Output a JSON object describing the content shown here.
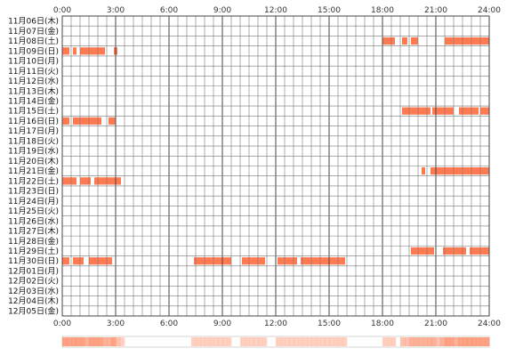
{
  "chart_data": {
    "type": "heatmap",
    "title": "",
    "x_ticks": [
      "0:00",
      "3:00",
      "6:00",
      "9:00",
      "12:00",
      "15:00",
      "18:00",
      "21:00",
      "24:00"
    ],
    "x_range_hours": [
      0,
      24
    ],
    "grid": true,
    "colors": {
      "bar": "#ff7a50",
      "grid": "#777777",
      "frame": "#444444",
      "summary_bg": "#ffffff"
    },
    "rows": [
      {
        "label": "11月06日(木)",
        "segments": []
      },
      {
        "label": "11月07日(金)",
        "segments": []
      },
      {
        "label": "11月08日(土)",
        "segments": [
          [
            18.0,
            18.7
          ],
          [
            19.1,
            19.4
          ],
          [
            19.6,
            20.0
          ],
          [
            21.5,
            24.0
          ]
        ]
      },
      {
        "label": "11月09日(日)",
        "segments": [
          [
            0.0,
            0.4
          ],
          [
            0.6,
            0.8
          ],
          [
            1.0,
            2.4
          ],
          [
            2.9,
            3.1
          ]
        ]
      },
      {
        "label": "11月10日(月)",
        "segments": []
      },
      {
        "label": "11月11日(火)",
        "segments": []
      },
      {
        "label": "11月12日(水)",
        "segments": []
      },
      {
        "label": "11月13日(木)",
        "segments": []
      },
      {
        "label": "11月14日(金)",
        "segments": []
      },
      {
        "label": "11月15日(土)",
        "segments": [
          [
            19.1,
            20.7
          ],
          [
            20.8,
            22.0
          ],
          [
            22.3,
            23.4
          ],
          [
            23.5,
            24.0
          ]
        ]
      },
      {
        "label": "11月16日(日)",
        "segments": [
          [
            0.0,
            0.4
          ],
          [
            0.6,
            2.2
          ],
          [
            2.6,
            3.0
          ]
        ]
      },
      {
        "label": "11月17日(月)",
        "segments": []
      },
      {
        "label": "11月18日(火)",
        "segments": []
      },
      {
        "label": "11月19日(水)",
        "segments": []
      },
      {
        "label": "11月20日(木)",
        "segments": []
      },
      {
        "label": "11月21日(金)",
        "segments": [
          [
            20.2,
            20.4
          ],
          [
            20.7,
            24.0
          ]
        ]
      },
      {
        "label": "11月22日(土)",
        "segments": [
          [
            0.0,
            0.8
          ],
          [
            1.0,
            1.6
          ],
          [
            1.8,
            3.3
          ]
        ]
      },
      {
        "label": "11月23日(日)",
        "segments": []
      },
      {
        "label": "11月24日(月)",
        "segments": []
      },
      {
        "label": "11月25日(火)",
        "segments": []
      },
      {
        "label": "11月26日(水)",
        "segments": []
      },
      {
        "label": "11月27日(木)",
        "segments": []
      },
      {
        "label": "11月28日(金)",
        "segments": []
      },
      {
        "label": "11月29日(土)",
        "segments": [
          [
            19.6,
            20.9
          ],
          [
            21.4,
            22.7
          ],
          [
            22.9,
            24.0
          ]
        ]
      },
      {
        "label": "11月30日(日)",
        "segments": [
          [
            0.0,
            0.4
          ],
          [
            0.6,
            1.2
          ],
          [
            1.5,
            2.8
          ],
          [
            7.4,
            9.5
          ],
          [
            10.1,
            11.4
          ],
          [
            12.1,
            13.2
          ],
          [
            13.4,
            15.9
          ]
        ]
      },
      {
        "label": "12月01日(月)",
        "segments": []
      },
      {
        "label": "12月02日(火)",
        "segments": []
      },
      {
        "label": "12月03日(水)",
        "segments": []
      },
      {
        "label": "12月04日(木)",
        "segments": []
      },
      {
        "label": "12月05日(金)",
        "segments": []
      }
    ]
  }
}
